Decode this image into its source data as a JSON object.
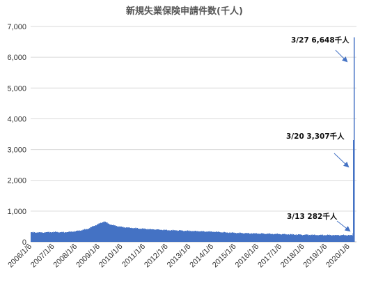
{
  "chart_data": {
    "type": "bar",
    "title": "新規失業保険申請件数(千人)",
    "xlabel": "",
    "ylabel": "",
    "ylim": [
      0,
      7000
    ],
    "yticks": [
      "0",
      "1,000",
      "2,000",
      "3,000",
      "4,000",
      "5,000",
      "6,000",
      "7,000"
    ],
    "ytick_values": [
      0,
      1000,
      2000,
      3000,
      4000,
      5000,
      6000,
      7000
    ],
    "xticks": [
      "2006/1/6",
      "2007/1/6",
      "2008/1/6",
      "2009/1/6",
      "2010/1/6",
      "2011/1/6",
      "2012/1/6",
      "2013/1/6",
      "2014/1/6",
      "2015/1/6",
      "2016/1/6",
      "2017/1/6",
      "2018/1/6",
      "2019/1/6",
      "2020/1/6"
    ],
    "xtick_values": [
      "2006-01-06",
      "2007-01-06",
      "2008-01-06",
      "2009-01-06",
      "2010-01-06",
      "2011-01-06",
      "2012-01-06",
      "2013-01-06",
      "2014-01-06",
      "2015-01-06",
      "2016-01-06",
      "2017-01-06",
      "2018-01-06",
      "2019-01-06",
      "2020-01-06"
    ],
    "grid": true,
    "bar_color": "#4472c4",
    "series": [
      {
        "values_by_date": [
          [
            "2006-01-06",
            310
          ],
          [
            "2006-07-06",
            305
          ],
          [
            "2007-01-06",
            320
          ],
          [
            "2007-07-06",
            310
          ],
          [
            "2008-01-06",
            345
          ],
          [
            "2008-07-06",
            420
          ],
          [
            "2008-12-06",
            560
          ],
          [
            "2009-03-27",
            665
          ],
          [
            "2009-07-06",
            560
          ],
          [
            "2010-01-06",
            480
          ],
          [
            "2011-01-06",
            420
          ],
          [
            "2012-01-06",
            380
          ],
          [
            "2013-01-06",
            355
          ],
          [
            "2014-01-06",
            330
          ],
          [
            "2015-01-06",
            290
          ],
          [
            "2016-01-06",
            270
          ],
          [
            "2017-01-06",
            250
          ],
          [
            "2018-01-06",
            230
          ],
          [
            "2019-01-06",
            220
          ],
          [
            "2020-01-06",
            215
          ],
          [
            "2020-03-06",
            211
          ],
          [
            "2020-03-13",
            282
          ],
          [
            "2020-03-20",
            3307
          ],
          [
            "2020-03-27",
            6648
          ]
        ]
      }
    ],
    "annotations": [
      {
        "date": "2020-03-27",
        "value": 6648,
        "label": "3/27 6,648千人"
      },
      {
        "date": "2020-03-20",
        "value": 3307,
        "label": "3/20 3,307千人"
      },
      {
        "date": "2020-03-13",
        "value": 282,
        "label": "3/13 282千人"
      }
    ]
  }
}
